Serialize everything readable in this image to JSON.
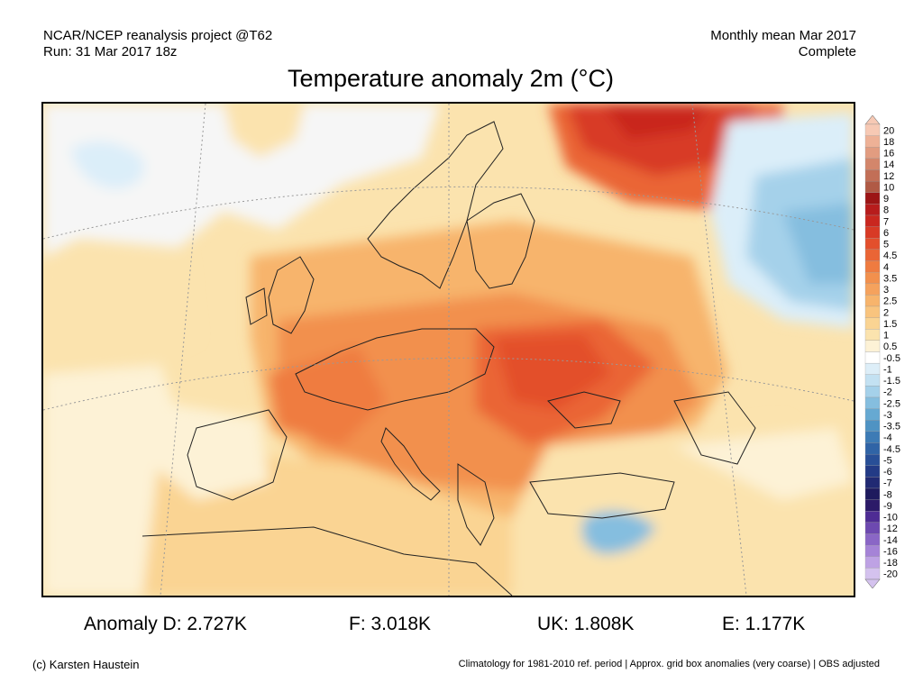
{
  "header": {
    "left_line1": "NCAR/NCEP reanalysis project @T62",
    "left_line2": "Run: 31 Mar 2017 18z",
    "right_line1": "Monthly mean Mar 2017",
    "right_line2": "Complete"
  },
  "title": "Temperature anomaly 2m (°C)",
  "legend": {
    "labels": [
      "20",
      "18",
      "16",
      "14",
      "12",
      "10",
      "9",
      "8",
      "7",
      "6",
      "5",
      "4.5",
      "4",
      "3.5",
      "3",
      "2.5",
      "2",
      "1.5",
      "1",
      "0.5",
      "-0.5",
      "-1",
      "-1.5",
      "-2",
      "-2.5",
      "-3",
      "-3.5",
      "-4",
      "-4.5",
      "-5",
      "-6",
      "-7",
      "-8",
      "-9",
      "-10",
      "-12",
      "-14",
      "-16",
      "-18",
      "-20"
    ],
    "colors": [
      "#f7c9b4",
      "#eeb196",
      "#e29c80",
      "#d3866b",
      "#c26f57",
      "#b05a45",
      "#9c1515",
      "#b71c1c",
      "#c9271f",
      "#d83a25",
      "#e34f2c",
      "#ea6535",
      "#ef7b40",
      "#f2904d",
      "#f5a25d",
      "#f7b46c",
      "#f9c47e",
      "#fad493",
      "#fbe3ae",
      "#fdf2d6",
      "#ffffff",
      "#ddeef8",
      "#c3e1f2",
      "#a5d1ea",
      "#85bedf",
      "#66a9d2",
      "#4f93c3",
      "#3d7bb5",
      "#3064a6",
      "#284f97",
      "#233b86",
      "#212a73",
      "#1e1a5e",
      "#2c1a68",
      "#4e2c94",
      "#6d49b0",
      "#8a66c6",
      "#a583d7",
      "#bea2e4",
      "#d4c2ee"
    ]
  },
  "stats": {
    "D": "Anomaly D: 2.727K",
    "F": "F: 3.018K",
    "UK": "UK: 1.808K",
    "E": "E: 1.177K"
  },
  "footer": {
    "credit": "(c) Karsten Haustein",
    "note": "Climatology for 1981-2010 ref. period | Approx. grid box anomalies (very coarse) | OBS adjusted"
  }
}
